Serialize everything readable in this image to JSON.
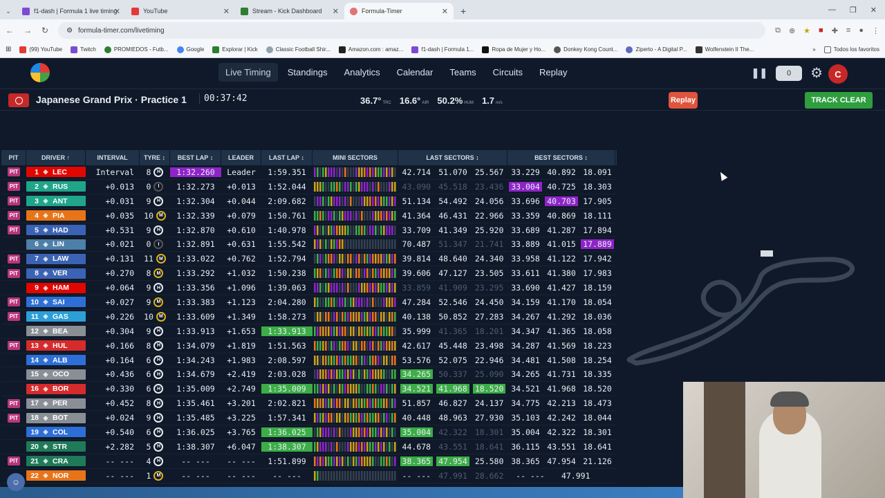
{
  "browser": {
    "tabs": [
      {
        "title": "f1-dash | Formula 1 live timing",
        "color": "#7b4bd6"
      },
      {
        "title": "YouTube",
        "color": "#e53935"
      },
      {
        "title": "Stream - Kick Dashboard",
        "color": "#2e7d32"
      },
      {
        "title": "Formula-Timer",
        "color": "#e57373"
      }
    ],
    "url": "formula-timer.com/livetiming",
    "bookmarks": [
      "(99) YouTube",
      "Twitch",
      "PROMIEDOS - Futb...",
      "Google",
      "Explorar | Kick",
      "Classic Football Shir...",
      "Amazon.com : amaz...",
      "f1-dash | Formula 1...",
      "Ropa de Mujer y Ho...",
      "Donkey Kong Count...",
      "Ziperto - A Digital P...",
      "Wolfenstein II The..."
    ],
    "bookmarks_folder": "Todos los favoritos"
  },
  "nav": {
    "items": [
      "Live Timing",
      "Standings",
      "Analytics",
      "Calendar",
      "Teams",
      "Circuits",
      "Replay"
    ],
    "counter": "0",
    "avatar": "C"
  },
  "session": {
    "title": "Japanese Grand Prix · Practice 1",
    "timer": "00:37:42",
    "weather": [
      {
        "v": "36.7°",
        "l": "TRC"
      },
      {
        "v": "16.6°",
        "l": "AIR"
      },
      {
        "v": "50.2%",
        "l": "HUM"
      },
      {
        "v": "1.7",
        "l": "m/s"
      }
    ],
    "replay": "Replay",
    "status": "TRACK CLEAR"
  },
  "columns": [
    "PIT",
    "DRIVER",
    "INTERVAL",
    "TYRE",
    "BEST LAP",
    "LEADER",
    "LAST LAP",
    "MINI SECTORS",
    "LAST SECTORS",
    "BEST SECTORS"
  ],
  "rows": [
    {
      "pit": "PIT",
      "pos": "1",
      "code": "LEC",
      "team": "#e10600",
      "int": "Interval",
      "laps": "8",
      "tyre": "H",
      "best": "1:32.260",
      "bestc": "purple",
      "lead": "Leader",
      "last": "1:59.351",
      "lastc": "",
      "ls": [
        "42.714",
        "51.070",
        "25.567"
      ],
      "lsc": [
        "",
        "",
        ""
      ],
      "bs": [
        "33.229",
        "40.892",
        "18.091"
      ],
      "bsc": [
        "",
        "",
        ""
      ]
    },
    {
      "pit": "PIT",
      "pos": "2",
      "code": "RUS",
      "team": "#1fa58a",
      "int": "+0.013",
      "laps": "0",
      "tyre": "I",
      "best": "1:32.273",
      "bestc": "",
      "lead": "+0.013",
      "last": "1:52.044",
      "lastc": "",
      "ls": [
        "43.090",
        "45.518",
        "23.436"
      ],
      "lsc": [
        "dim",
        "dim",
        "dim"
      ],
      "bs": [
        "33.004",
        "40.725",
        "18.303"
      ],
      "bsc": [
        "purple",
        "",
        ""
      ]
    },
    {
      "pit": "PIT",
      "pos": "3",
      "code": "ANT",
      "team": "#1fa58a",
      "int": "+0.031",
      "laps": "9",
      "tyre": "H",
      "best": "1:32.304",
      "bestc": "",
      "lead": "+0.044",
      "last": "2:09.682",
      "lastc": "",
      "ls": [
        "51.134",
        "54.492",
        "24.056"
      ],
      "lsc": [
        "",
        "",
        ""
      ],
      "bs": [
        "33.696",
        "40.703",
        "17.905"
      ],
      "bsc": [
        "",
        "purple",
        ""
      ]
    },
    {
      "pit": "PIT",
      "pos": "4",
      "code": "PIA",
      "team": "#e8741a",
      "int": "+0.035",
      "laps": "10",
      "tyre": "M",
      "best": "1:32.339",
      "bestc": "",
      "lead": "+0.079",
      "last": "1:50.761",
      "lastc": "",
      "ls": [
        "41.364",
        "46.431",
        "22.966"
      ],
      "lsc": [
        "",
        "",
        ""
      ],
      "bs": [
        "33.359",
        "40.869",
        "18.111"
      ],
      "bsc": [
        "",
        "",
        ""
      ]
    },
    {
      "pit": "PIT",
      "pos": "5",
      "code": "HAD",
      "team": "#3b63b5",
      "int": "+0.531",
      "laps": "9",
      "tyre": "H",
      "best": "1:32.870",
      "bestc": "",
      "lead": "+0.610",
      "last": "1:40.978",
      "lastc": "",
      "ls": [
        "33.709",
        "41.349",
        "25.920"
      ],
      "lsc": [
        "",
        "",
        ""
      ],
      "bs": [
        "33.689",
        "41.287",
        "17.894"
      ],
      "bsc": [
        "",
        "",
        ""
      ]
    },
    {
      "pit": "",
      "pos": "6",
      "code": "LIN",
      "team": "#4d7fa8",
      "int": "+0.021",
      "laps": "0",
      "tyre": "I",
      "best": "1:32.891",
      "bestc": "",
      "lead": "+0.631",
      "last": "1:55.542",
      "lastc": "",
      "ls": [
        "70.487",
        "51.347",
        "21.741"
      ],
      "lsc": [
        "",
        "dim",
        "dim"
      ],
      "bs": [
        "33.889",
        "41.015",
        "17.889"
      ],
      "bsc": [
        "",
        "",
        "purple"
      ]
    },
    {
      "pit": "PIT",
      "pos": "7",
      "code": "LAW",
      "team": "#3b63b5",
      "int": "+0.131",
      "laps": "11",
      "tyre": "M",
      "best": "1:33.022",
      "bestc": "",
      "lead": "+0.762",
      "last": "1:52.794",
      "lastc": "",
      "ls": [
        "39.814",
        "48.640",
        "24.340"
      ],
      "lsc": [
        "",
        "",
        ""
      ],
      "bs": [
        "33.958",
        "41.122",
        "17.942"
      ],
      "bsc": [
        "",
        "",
        ""
      ]
    },
    {
      "pit": "PIT",
      "pos": "8",
      "code": "VER",
      "team": "#3b63b5",
      "int": "+0.270",
      "laps": "8",
      "tyre": "M",
      "best": "1:33.292",
      "bestc": "",
      "lead": "+1.032",
      "last": "1:50.238",
      "lastc": "",
      "ls": [
        "39.606",
        "47.127",
        "23.505"
      ],
      "lsc": [
        "",
        "",
        ""
      ],
      "bs": [
        "33.611",
        "41.380",
        "17.983"
      ],
      "bsc": [
        "",
        "",
        ""
      ]
    },
    {
      "pit": "",
      "pos": "9",
      "code": "HAM",
      "team": "#e10600",
      "int": "+0.064",
      "laps": "9",
      "tyre": "H",
      "best": "1:33.356",
      "bestc": "",
      "lead": "+1.096",
      "last": "1:39.063",
      "lastc": "",
      "ls": [
        "33.859",
        "41.909",
        "23.295"
      ],
      "lsc": [
        "dim",
        "dim",
        "dim"
      ],
      "bs": [
        "33.690",
        "41.427",
        "18.159"
      ],
      "bsc": [
        "",
        "",
        ""
      ]
    },
    {
      "pit": "PIT",
      "pos": "10",
      "code": "SAI",
      "team": "#2d6fd6",
      "int": "+0.027",
      "laps": "9",
      "tyre": "M",
      "best": "1:33.383",
      "bestc": "",
      "lead": "+1.123",
      "last": "2:04.280",
      "lastc": "",
      "ls": [
        "47.284",
        "52.546",
        "24.450"
      ],
      "lsc": [
        "",
        "",
        ""
      ],
      "bs": [
        "34.159",
        "41.170",
        "18.054"
      ],
      "bsc": [
        "",
        "",
        ""
      ]
    },
    {
      "pit": "PIT",
      "pos": "11",
      "code": "GAS",
      "team": "#2d9fd6",
      "int": "+0.226",
      "laps": "10",
      "tyre": "M",
      "best": "1:33.609",
      "bestc": "",
      "lead": "+1.349",
      "last": "1:58.273",
      "lastc": "",
      "ls": [
        "40.138",
        "50.852",
        "27.283"
      ],
      "lsc": [
        "",
        "",
        ""
      ],
      "bs": [
        "34.267",
        "41.292",
        "18.036"
      ],
      "bsc": [
        "",
        "",
        ""
      ]
    },
    {
      "pit": "",
      "pos": "12",
      "code": "BEA",
      "team": "#8a8f96",
      "int": "+0.304",
      "laps": "9",
      "tyre": "H",
      "best": "1:33.913",
      "bestc": "",
      "lead": "+1.653",
      "last": "1:33.913",
      "lastc": "green",
      "ls": [
        "35.999",
        "41.365",
        "18.201"
      ],
      "lsc": [
        "",
        "dim",
        "dim"
      ],
      "bs": [
        "34.347",
        "41.365",
        "18.058"
      ],
      "bsc": [
        "",
        "",
        ""
      ]
    },
    {
      "pit": "PIT",
      "pos": "13",
      "code": "HUL",
      "team": "#d62b2b",
      "int": "+0.166",
      "laps": "8",
      "tyre": "H",
      "best": "1:34.079",
      "bestc": "",
      "lead": "+1.819",
      "last": "1:51.563",
      "lastc": "",
      "ls": [
        "42.617",
        "45.448",
        "23.498"
      ],
      "lsc": [
        "",
        "",
        ""
      ],
      "bs": [
        "34.287",
        "41.569",
        "18.223"
      ],
      "bsc": [
        "",
        "",
        ""
      ]
    },
    {
      "pit": "",
      "pos": "14",
      "code": "ALB",
      "team": "#2d6fd6",
      "int": "+0.164",
      "laps": "6",
      "tyre": "H",
      "best": "1:34.243",
      "bestc": "",
      "lead": "+1.983",
      "last": "2:08.597",
      "lastc": "",
      "ls": [
        "53.576",
        "52.075",
        "22.946"
      ],
      "lsc": [
        "",
        "",
        ""
      ],
      "bs": [
        "34.481",
        "41.508",
        "18.254"
      ],
      "bsc": [
        "",
        "",
        ""
      ]
    },
    {
      "pit": "",
      "pos": "15",
      "code": "OCO",
      "team": "#8a8f96",
      "int": "+0.436",
      "laps": "6",
      "tyre": "H",
      "best": "1:34.679",
      "bestc": "",
      "lead": "+2.419",
      "last": "2:03.028",
      "lastc": "",
      "ls": [
        "34.265",
        "50.337",
        "25.090"
      ],
      "lsc": [
        "green",
        "dim",
        "dim"
      ],
      "bs": [
        "34.265",
        "41.731",
        "18.335"
      ],
      "bsc": [
        "",
        "",
        ""
      ]
    },
    {
      "pit": "",
      "pos": "16",
      "code": "BOR",
      "team": "#d62b2b",
      "int": "+0.330",
      "laps": "6",
      "tyre": "H",
      "best": "1:35.009",
      "bestc": "",
      "lead": "+2.749",
      "last": "1:35.009",
      "lastc": "green",
      "ls": [
        "34.521",
        "41.968",
        "18.520"
      ],
      "lsc": [
        "green",
        "green",
        "green"
      ],
      "bs": [
        "34.521",
        "41.968",
        "18.520"
      ],
      "bsc": [
        "",
        "",
        ""
      ]
    },
    {
      "pit": "PIT",
      "pos": "17",
      "code": "PER",
      "team": "#8a8f96",
      "int": "+0.452",
      "laps": "8",
      "tyre": "H",
      "best": "1:35.461",
      "bestc": "",
      "lead": "+3.201",
      "last": "2:02.821",
      "lastc": "",
      "ls": [
        "51.857",
        "46.827",
        "24.137"
      ],
      "lsc": [
        "",
        "",
        ""
      ],
      "bs": [
        "34.775",
        "42.213",
        "18.473"
      ],
      "bsc": [
        "",
        "",
        ""
      ]
    },
    {
      "pit": "PIT",
      "pos": "18",
      "code": "BOT",
      "team": "#8a8f96",
      "int": "+0.024",
      "laps": "9",
      "tyre": "H",
      "best": "1:35.485",
      "bestc": "",
      "lead": "+3.225",
      "last": "1:57.341",
      "lastc": "",
      "ls": [
        "40.448",
        "48.963",
        "27.930"
      ],
      "lsc": [
        "",
        "",
        ""
      ],
      "bs": [
        "35.103",
        "42.242",
        "18.044"
      ],
      "bsc": [
        "",
        "",
        ""
      ]
    },
    {
      "pit": "",
      "pos": "19",
      "code": "COL",
      "team": "#2d6fd6",
      "int": "+0.540",
      "laps": "6",
      "tyre": "H",
      "best": "1:36.025",
      "bestc": "",
      "lead": "+3.765",
      "last": "1:36.025",
      "lastc": "green",
      "ls": [
        "35.004",
        "42.322",
        "18.301"
      ],
      "lsc": [
        "green",
        "dim",
        "dim"
      ],
      "bs": [
        "35.004",
        "42.322",
        "18.301"
      ],
      "bsc": [
        "",
        "",
        ""
      ]
    },
    {
      "pit": "",
      "pos": "20",
      "code": "STR",
      "team": "#1f7a5a",
      "int": "+2.282",
      "laps": "5",
      "tyre": "H",
      "best": "1:38.307",
      "bestc": "",
      "lead": "+6.047",
      "last": "1:38.307",
      "lastc": "green",
      "ls": [
        "44.678",
        "43.551",
        "18.641"
      ],
      "lsc": [
        "",
        "dim",
        "dim"
      ],
      "bs": [
        "36.115",
        "43.551",
        "18.641"
      ],
      "bsc": [
        "",
        "",
        ""
      ]
    },
    {
      "pit": "PIT",
      "pos": "21",
      "code": "CRA",
      "team": "#1f7a5a",
      "int": "-- ---",
      "laps": "4",
      "tyre": "H",
      "best": "-- ---",
      "bestc": "",
      "lead": "-- ---",
      "last": "1:51.899",
      "lastc": "",
      "ls": [
        "38.365",
        "47.954",
        "25.580"
      ],
      "lsc": [
        "green",
        "green",
        ""
      ],
      "bs": [
        "38.365",
        "47.954",
        "21.126"
      ],
      "bsc": [
        "",
        "",
        ""
      ]
    },
    {
      "pit": "",
      "pos": "22",
      "code": "NOR",
      "team": "#e8741a",
      "int": "-- ---",
      "laps": "1",
      "tyre": "M",
      "best": "-- ---",
      "bestc": "",
      "lead": "-- ---",
      "last": "-- ---",
      "lastc": "",
      "ls": [
        "-- ---",
        "47.991",
        "28.662"
      ],
      "lsc": [
        "",
        "dim",
        "dim"
      ],
      "bs": [
        "-- ---",
        "47.991",
        ""
      ],
      "bsc": [
        "",
        "",
        ""
      ]
    }
  ]
}
